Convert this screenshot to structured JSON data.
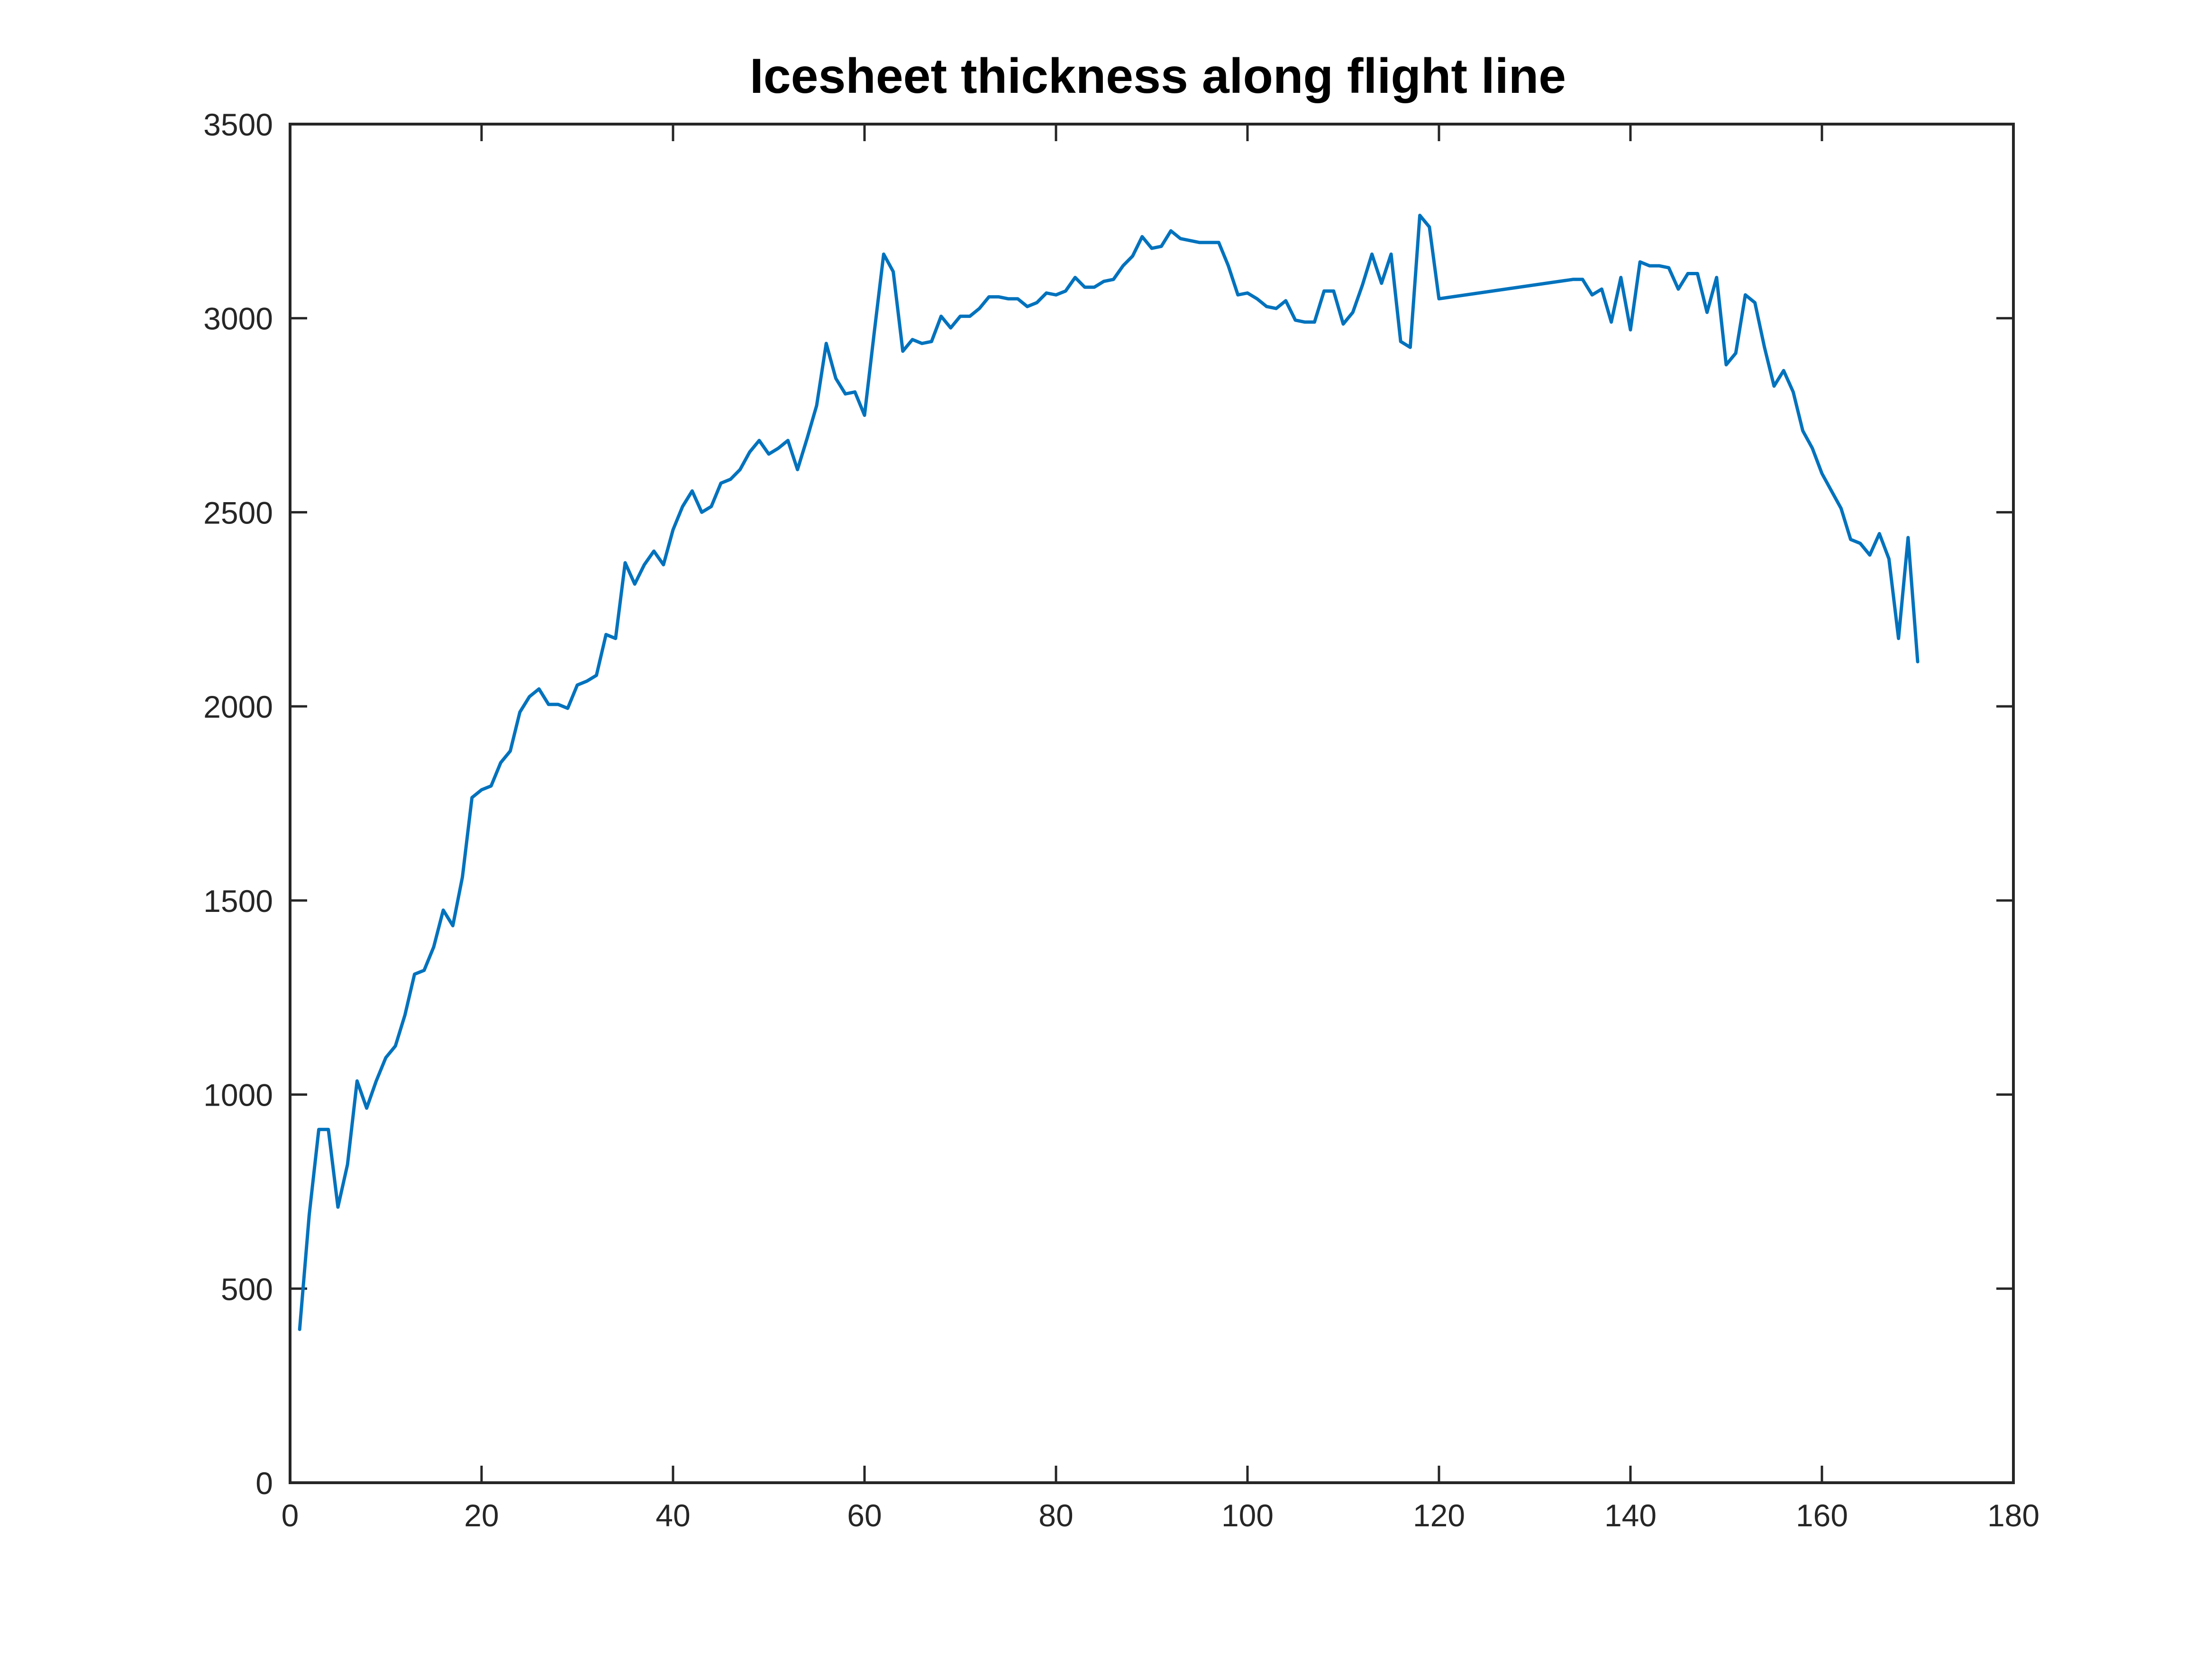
{
  "chart_data": {
    "type": "line",
    "title": "Icesheet thickness along flight line",
    "xlabel": "",
    "ylabel": "",
    "xlim": [
      0,
      180
    ],
    "ylim": [
      0,
      3500
    ],
    "xticks": [
      0,
      20,
      40,
      60,
      80,
      100,
      120,
      140,
      160,
      180
    ],
    "yticks": [
      0,
      500,
      1000,
      1500,
      2000,
      2500,
      3000,
      3500
    ],
    "grid": false,
    "colors": {
      "line": "#0072BD",
      "axes": "#262626",
      "background": "#ffffff"
    },
    "series": [
      {
        "x": [
          1,
          2,
          3,
          4,
          5,
          6,
          7,
          8,
          9,
          10,
          11,
          12,
          13,
          14,
          15,
          16,
          17,
          18,
          19,
          20,
          21,
          22,
          23,
          24,
          25,
          26,
          27,
          28,
          29,
          30,
          31,
          32,
          33,
          34,
          35,
          36,
          37,
          38,
          39,
          40,
          41,
          42,
          43,
          44,
          45,
          46,
          47,
          48,
          49,
          50,
          51,
          52,
          53,
          54,
          55,
          56,
          57,
          58,
          59,
          60,
          61,
          62,
          63,
          64,
          65,
          66,
          67,
          68,
          69,
          70,
          71,
          72,
          73,
          74,
          75,
          76,
          77,
          78,
          79,
          80,
          81,
          82,
          83,
          84,
          85,
          86,
          87,
          88,
          89,
          90,
          91,
          92,
          93,
          94,
          95,
          96,
          97,
          98,
          99,
          100,
          101,
          102,
          103,
          104,
          105,
          106,
          107,
          108,
          109,
          110,
          111,
          112,
          113,
          114,
          115,
          116,
          117,
          118,
          119,
          120,
          134,
          135,
          136,
          137,
          138,
          139,
          140,
          141,
          142,
          143,
          144,
          145,
          146,
          147,
          148,
          149,
          150,
          151,
          152,
          153,
          154,
          155,
          156,
          157,
          158,
          159,
          160,
          161,
          162,
          163,
          164,
          165,
          166,
          167,
          168,
          169,
          170
        ],
        "y": [
          395,
          690,
          910,
          910,
          710,
          820,
          1035,
          965,
          1035,
          1095,
          1125,
          1205,
          1310,
          1320,
          1380,
          1475,
          1435,
          1560,
          1765,
          1785,
          1795,
          1855,
          1885,
          1985,
          2025,
          2045,
          2005,
          2005,
          1995,
          2055,
          2065,
          2080,
          2185,
          2175,
          2370,
          2315,
          2365,
          2400,
          2365,
          2455,
          2515,
          2555,
          2500,
          2515,
          2575,
          2585,
          2610,
          2655,
          2685,
          2650,
          2665,
          2685,
          2610,
          2690,
          2775,
          2935,
          2845,
          2805,
          2810,
          2750,
          2960,
          3165,
          3120,
          2915,
          2945,
          2935,
          2940,
          3005,
          2975,
          3005,
          3005,
          3025,
          3055,
          3055,
          3050,
          3050,
          3030,
          3040,
          3065,
          3060,
          3070,
          3105,
          3080,
          3080,
          3095,
          3100,
          3135,
          3160,
          3210,
          3180,
          3185,
          3225,
          3205,
          3200,
          3195,
          3195,
          3195,
          3135,
          3060,
          3065,
          3050,
          3030,
          3025,
          3045,
          2995,
          2990,
          2990,
          3070,
          3070,
          2985,
          3015,
          3085,
          3165,
          3090,
          3165,
          2940,
          2925,
          3265,
          3235,
          3050,
          3100,
          3100,
          3060,
          3075,
          2990,
          3105,
          2970,
          3145,
          3135,
          3135,
          3130,
          3075,
          3115,
          3115,
          3015,
          3105,
          2880,
          2910,
          3060,
          3040,
          2925,
          2825,
          2865,
          2810,
          2710,
          2665,
          2600,
          2555,
          2510,
          2430,
          2420,
          2390,
          2445,
          2380,
          2175,
          2435,
          2115
        ]
      }
    ]
  }
}
